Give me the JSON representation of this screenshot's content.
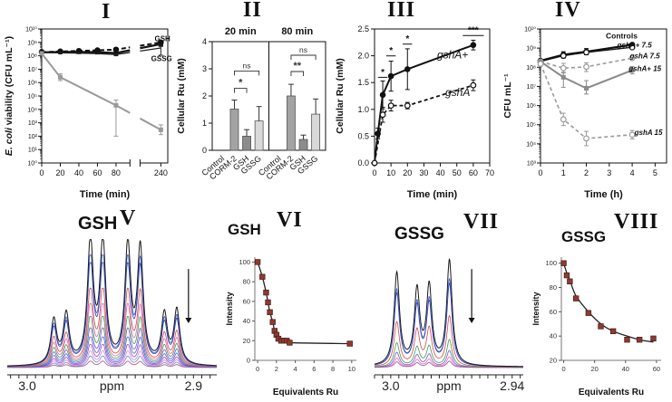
{
  "chart_data": [
    {
      "numeral": "I",
      "type": "line",
      "xlabel": "Time (min)",
      "ylabel": "E. coli viability (CFU mL⁻¹)",
      "ylabel_runs": [
        {
          "t": "E. coli ",
          "italic": true
        },
        {
          "t": "viability (CFU mL⁻¹)"
        }
      ],
      "yscale": "log",
      "ylim_exp": [
        0,
        10
      ],
      "xticks": [
        0,
        20,
        40,
        60,
        80,
        240
      ],
      "x_break": {
        "segments": [
          {
            "domain": [
              0,
              95
            ],
            "range": [
              0,
              0.7
            ]
          },
          {
            "domain": [
              180,
              260
            ],
            "range": [
              0.78,
              1
            ]
          }
        ]
      },
      "series": [
        {
          "label": "GSH",
          "color": "#111111",
          "dash": "5,3",
          "width": 2,
          "marker": "circle",
          "x": [
            0,
            20,
            40,
            60,
            80,
            240
          ],
          "y": [
            190000000.0,
            210000000.0,
            230000000.0,
            255000000.0,
            290000000.0,
            1000000000.0
          ],
          "errlo": [
            null,
            null,
            null,
            null,
            null,
            750000000.0
          ],
          "errhi": [
            null,
            null,
            null,
            null,
            null,
            1350000000.0
          ]
        },
        {
          "color": "#111111",
          "width": 2.2,
          "marker": "square",
          "x": [
            0,
            20,
            40,
            60,
            80,
            240
          ],
          "y": [
            180000000.0,
            195000000.0,
            195000000.0,
            185000000.0,
            160000000.0,
            750000000.0
          ],
          "errlo": [
            null,
            null,
            null,
            null,
            100000000.0,
            500000000.0
          ],
          "errhi": [
            null,
            null,
            null,
            null,
            240000000.0,
            1050000000.0
          ]
        },
        {
          "label": "GSSG",
          "color": "#222222",
          "width": 1.3,
          "marker": "none",
          "x": [
            0,
            20,
            40,
            60,
            80,
            240
          ],
          "y": [
            170000000.0,
            165000000.0,
            155000000.0,
            145000000.0,
            125000000.0,
            380000000.0
          ],
          "errlo": [
            null,
            null,
            null,
            null,
            null,
            110000000.0
          ],
          "errhi": [
            null,
            null,
            null,
            null,
            null,
            600000000.0
          ]
        },
        {
          "color": "#9a9a9a",
          "width": 2,
          "marker": "square",
          "x": [
            0,
            20,
            80,
            240
          ],
          "y": [
            150000000.0,
            2500000.0,
            20000.0,
            300.0
          ],
          "errlo": [
            null,
            1400000.0,
            100.0,
            130.0
          ],
          "errhi": [
            null,
            4500000.0,
            50000.0,
            700.0
          ]
        }
      ],
      "annotations": [
        {
          "text": "GSH",
          "x": 222,
          "y": 1250000000.0,
          "fs": 8,
          "weight": "bold"
        },
        {
          "text": "GSSG",
          "x": 212,
          "y": 40000000.0,
          "fs": 8,
          "weight": "bold"
        }
      ]
    },
    {
      "numeral": "II",
      "type": "bar",
      "ylabel": "Cellular Ru (mM)",
      "ylim": [
        0,
        4
      ],
      "yticks": [
        0,
        1,
        2,
        3,
        4
      ],
      "categories": [
        "Control",
        "CORM-2",
        "GSH",
        "GSSG"
      ],
      "bar_colors": [
        "#bfbfbf",
        "#a3a3a3",
        "#8c8c8c",
        "#d9d9d9"
      ],
      "groups": [
        {
          "label": "20 min",
          "values": [
            0,
            1.52,
            0.52,
            1.08
          ],
          "errors": [
            0,
            0.33,
            0.24,
            0.53
          ],
          "sig": [
            {
              "from": 1,
              "to": 2,
              "y": 2.28,
              "text": "*"
            },
            {
              "from": 1,
              "to": 3,
              "y": 2.92,
              "text": "ns"
            }
          ]
        },
        {
          "label": "80 min",
          "values": [
            0,
            2.0,
            0.4,
            1.33
          ],
          "errors": [
            0,
            0.43,
            0.16,
            0.56
          ],
          "sig": [
            {
              "from": 1,
              "to": 2,
              "y": 2.9,
              "text": "**"
            },
            {
              "from": 1,
              "to": 3,
              "y": 3.5,
              "text": "ns"
            }
          ]
        }
      ]
    },
    {
      "numeral": "III",
      "type": "line",
      "xlabel": "Time (min)",
      "ylabel": "Cellular Ru (mM)",
      "yscale": "linear",
      "xlim": [
        0,
        70
      ],
      "ylim": [
        0,
        2.5
      ],
      "xticks": [
        0,
        10,
        20,
        30,
        40,
        50,
        60,
        70
      ],
      "yticks": [
        0.0,
        0.5,
        1.0,
        1.5,
        2.0,
        2.5
      ],
      "ydec": 1,
      "series": [
        {
          "label": "gshA+",
          "color": "#111111",
          "width": 2,
          "marker": "circle",
          "x": [
            0,
            2,
            5,
            10,
            20,
            60
          ],
          "y": [
            0,
            0.55,
            1.27,
            1.62,
            1.75,
            2.2
          ],
          "err": [
            0,
            0.1,
            0.26,
            0.28,
            0.38,
            0.09
          ]
        },
        {
          "label": "gshA",
          "color": "#111111",
          "width": 1.8,
          "dash": "4,3",
          "marker": "circle-open",
          "x": [
            0,
            5,
            10,
            20,
            60
          ],
          "y": [
            0,
            0.9,
            1.07,
            1.07,
            1.45
          ],
          "err": [
            0,
            0.14,
            0.1,
            0.06,
            0.1
          ]
        }
      ],
      "sig": [
        {
          "x": 5,
          "y": 1.64,
          "text": "*"
        },
        {
          "x": 10,
          "y": 2.04,
          "text": "*"
        },
        {
          "x": 20,
          "y": 2.26,
          "text": "*"
        },
        {
          "x": 60,
          "y": 2.42,
          "text": "***"
        }
      ],
      "annotations": [
        {
          "text": "gshA+",
          "x": 38,
          "y": 1.95,
          "fs": 12,
          "style": "italic"
        },
        {
          "text": "gshA",
          "x": 43,
          "y": 1.25,
          "fs": 12,
          "style": "italic"
        }
      ]
    },
    {
      "numeral": "IV",
      "type": "line",
      "xlabel": "Time (h)",
      "ylabel": "CFU mL⁻¹",
      "yscale": "log",
      "ylim_exp": [
        3,
        10
      ],
      "xlim": [
        0,
        5.5
      ],
      "xticks": [
        0,
        1,
        2,
        3,
        4,
        5
      ],
      "series": [
        {
          "label": "Controls",
          "color": "#111111",
          "width": 2.2,
          "marker": "circle",
          "x": [
            0,
            1,
            2,
            4
          ],
          "y": [
            220000000.0,
            450000000.0,
            650000000.0,
            1500000000.0
          ],
          "errlo": [
            null,
            300000000.0,
            450000000.0,
            null
          ],
          "errhi": [
            null,
            650000000.0,
            950000000.0,
            null
          ]
        },
        {
          "label": "gshA+ 7.5",
          "color": "#111111",
          "width": 1.3,
          "marker": "circle-open",
          "x": [
            0,
            1,
            2,
            4
          ],
          "y": [
            200000000.0,
            400000000.0,
            600000000.0,
            1100000000.0
          ]
        },
        {
          "label": "gshA 7.5",
          "color": "#999999",
          "width": 1.6,
          "dash": "4,3",
          "marker": "circle-open",
          "x": [
            0,
            1,
            2,
            4
          ],
          "y": [
            200000000.0,
            90000000.0,
            105000000.0,
            300000000.0
          ],
          "errlo": [
            null,
            50000000.0,
            60000000.0,
            null
          ],
          "errhi": [
            null,
            160000000.0,
            170000000.0,
            null
          ]
        },
        {
          "label": "gshA+ 15",
          "color": "#8a8a8a",
          "width": 2,
          "marker": "square",
          "x": [
            0,
            1,
            2,
            4
          ],
          "y": [
            200000000.0,
            30000000.0,
            8000000.0,
            70000000.0
          ],
          "errlo": [
            null,
            9000000.0,
            4000000.0,
            45000000.0
          ],
          "errhi": [
            null,
            55000000.0,
            20000000.0,
            110000000.0
          ]
        },
        {
          "label": "gshA 15",
          "color": "#9a9a9a",
          "width": 1.6,
          "dash": "4,3",
          "marker": "circle-open",
          "x": [
            0,
            1,
            2,
            4
          ],
          "y": [
            150000000.0,
            190000.0,
            19000.0,
            30000.0
          ],
          "errlo": [
            null,
            90000.0,
            8000.0,
            18000.0
          ],
          "errhi": [
            null,
            400000.0,
            45000.0,
            50000.0
          ]
        }
      ],
      "annotations": [
        {
          "text": "Controls",
          "x": 2.85,
          "y": 3200000000.0,
          "fs": 8.5,
          "weight": "bold"
        },
        {
          "text": "gshA+ 7.5",
          "x": 3.35,
          "y": 1050000000.0,
          "fs": 8,
          "style": "italic",
          "weight": "bold"
        },
        {
          "text": "gshA 7.5",
          "x": 3.9,
          "y": 290000000.0,
          "fs": 8,
          "style": "italic",
          "weight": "bold"
        },
        {
          "text": "gshA+ 15",
          "x": 3.85,
          "y": 62000000.0,
          "fs": 8,
          "style": "italic",
          "weight": "bold"
        },
        {
          "text": "gshA 15",
          "x": 4.1,
          "y": 29000.0,
          "fs": 8,
          "style": "italic",
          "weight": "bold"
        }
      ]
    },
    {
      "numeral": "V",
      "type": "nmr",
      "title": "GSH",
      "ppm_left": 3.012,
      "ppm_right": 2.886,
      "left_val": 3.0,
      "right_val": 2.9,
      "xtick_labels": {
        "left": "3.0",
        "center": "ppm",
        "right": "2.9"
      },
      "tick_step": 0.005,
      "peak_width": 0.0021,
      "peaks": [
        [
          2.984,
          0.36
        ],
        [
          2.9765,
          0.4
        ],
        [
          2.962,
          1.0
        ],
        [
          2.9545,
          0.98
        ],
        [
          2.9395,
          0.96
        ],
        [
          2.932,
          0.93
        ],
        [
          2.9175,
          0.4
        ],
        [
          2.91,
          0.44
        ]
      ],
      "trace_scales": [
        1,
        0.88,
        0.82,
        0.62,
        0.5,
        0.4,
        0.31,
        0.24,
        0.18,
        0.13,
        0.09,
        0.05
      ],
      "trace_colors": [
        "#1a1a1a",
        "#3a5bd0",
        "#2a3bb0",
        "#d04a4a",
        "#e06ab0",
        "#3f9e4d",
        "#7c52c9",
        "#4466dd",
        "#9e44b0",
        "#c98ad8",
        "#6f86e0",
        "#b05070"
      ],
      "arrow_ppm": 2.903
    },
    {
      "numeral": "VI",
      "type": "scatter",
      "title": "GSH",
      "xlabel": "Equivalents Ru",
      "ylabel": "Intensity",
      "xlim": [
        -0.3,
        10.5
      ],
      "xticks": [
        0,
        2,
        4,
        6,
        8,
        10
      ],
      "ylim": [
        0,
        105
      ],
      "yticks": [
        0,
        20,
        40,
        60,
        80,
        100
      ],
      "marker_color": "#8e3b30",
      "points": [
        [
          0,
          100
        ],
        [
          0.5,
          85
        ],
        [
          0.9,
          69
        ],
        [
          1.1,
          59
        ],
        [
          1.3,
          49
        ],
        [
          1.6,
          39
        ],
        [
          1.8,
          30
        ],
        [
          2.0,
          26
        ],
        [
          2.2,
          22
        ],
        [
          2.5,
          20
        ],
        [
          2.8,
          20
        ],
        [
          3.1,
          20
        ],
        [
          3.4,
          18
        ],
        [
          9.8,
          17
        ]
      ]
    },
    {
      "numeral": "VII",
      "type": "nmr",
      "title": "GSSG",
      "ppm_left": 3.008,
      "ppm_right": 2.9345,
      "left_val": 3.0,
      "right_val": 2.94,
      "xtick_labels": {
        "left": "3.0",
        "center": "ppm",
        "right": "2.94"
      },
      "tick_step": 0.004,
      "peak_width": 0.0016,
      "peaks": [
        [
          2.997,
          0.75
        ],
        [
          2.987,
          0.6
        ],
        [
          2.981,
          0.63
        ],
        [
          2.971,
          0.85
        ]
      ],
      "trace_scales": [
        1,
        0.82,
        0.78,
        0.48,
        0.26,
        0.16,
        0.1,
        0.06
      ],
      "trace_colors": [
        "#1a1a1a",
        "#3a5bd0",
        "#2a3bb0",
        "#d04a4a",
        "#3f9e4d",
        "#7c52c9",
        "#e06ab0",
        "#9e44b0"
      ],
      "arrow_ppm": 2.96
    },
    {
      "numeral": "VIII",
      "type": "scatter",
      "title": "GSSG",
      "xlabel": "Equivalents Ru",
      "ylabel": "Intensity",
      "xlim": [
        -1.5,
        63
      ],
      "xticks": [
        0,
        20,
        40,
        60
      ],
      "ylim": [
        20,
        105
      ],
      "yticks": [
        20,
        40,
        60,
        80,
        100
      ],
      "marker_color": "#8e3b30",
      "points": [
        [
          0,
          100
        ],
        [
          2,
          90
        ],
        [
          4,
          85
        ],
        [
          8,
          71
        ],
        [
          16,
          59
        ],
        [
          24,
          48
        ],
        [
          32,
          44
        ],
        [
          41,
          37
        ],
        [
          49,
          37
        ],
        [
          58,
          38
        ]
      ],
      "fit_points": [
        [
          0,
          100
        ],
        [
          2,
          92
        ],
        [
          4,
          86
        ],
        [
          8,
          73
        ],
        [
          16,
          60
        ],
        [
          24,
          50
        ],
        [
          32,
          44
        ],
        [
          41,
          40
        ],
        [
          49,
          37
        ],
        [
          58,
          35
        ]
      ]
    }
  ]
}
